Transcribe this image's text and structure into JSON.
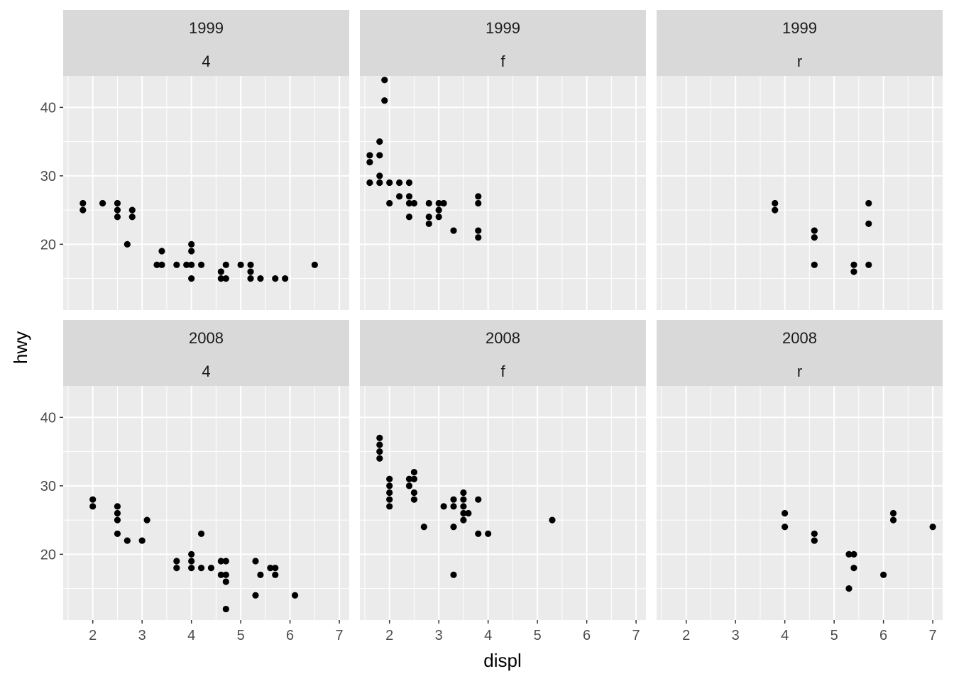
{
  "chart_data": {
    "type": "scatter",
    "facet_rows": [
      "1999",
      "2008"
    ],
    "facet_cols": [
      "4",
      "f",
      "r"
    ],
    "xlabel": "displ",
    "ylabel": "hwy",
    "xlim": [
      1.4,
      7.2
    ],
    "ylim": [
      10.4,
      44.6
    ],
    "x_ticks": [
      2,
      3,
      4,
      5,
      6,
      7
    ],
    "y_ticks": [
      20,
      30,
      40
    ],
    "grid": true,
    "point_color": "#000000",
    "panel_bg": "#EBEBEB",
    "strip_bg": "#D9D9D9",
    "panels": [
      {
        "row": "1999",
        "col": "4",
        "points": [
          [
            1.8,
            26
          ],
          [
            1.8,
            25
          ],
          [
            2.2,
            26
          ],
          [
            2.5,
            26
          ],
          [
            2.5,
            25
          ],
          [
            2.5,
            24
          ],
          [
            2.7,
            20
          ],
          [
            2.8,
            25
          ],
          [
            2.8,
            24
          ],
          [
            3.3,
            17
          ],
          [
            3.4,
            17
          ],
          [
            3.4,
            19
          ],
          [
            3.7,
            17
          ],
          [
            3.9,
            17
          ],
          [
            4.0,
            20
          ],
          [
            4.0,
            19
          ],
          [
            4.0,
            17
          ],
          [
            4.0,
            15
          ],
          [
            4.2,
            17
          ],
          [
            4.6,
            16
          ],
          [
            4.6,
            15
          ],
          [
            4.7,
            17
          ],
          [
            4.7,
            15
          ],
          [
            5.0,
            17
          ],
          [
            5.2,
            17
          ],
          [
            5.2,
            16
          ],
          [
            5.2,
            15
          ],
          [
            5.4,
            15
          ],
          [
            5.7,
            15
          ],
          [
            5.9,
            15
          ],
          [
            6.5,
            17
          ]
        ]
      },
      {
        "row": "1999",
        "col": "f",
        "points": [
          [
            1.6,
            33
          ],
          [
            1.6,
            32
          ],
          [
            1.6,
            29
          ],
          [
            1.8,
            35
          ],
          [
            1.8,
            33
          ],
          [
            1.8,
            30
          ],
          [
            1.8,
            29
          ],
          [
            1.9,
            44
          ],
          [
            1.9,
            41
          ],
          [
            2.0,
            29
          ],
          [
            2.0,
            26
          ],
          [
            2.2,
            29
          ],
          [
            2.2,
            27
          ],
          [
            2.4,
            29
          ],
          [
            2.4,
            27
          ],
          [
            2.4,
            26
          ],
          [
            2.4,
            24
          ],
          [
            2.5,
            26
          ],
          [
            2.8,
            26
          ],
          [
            2.8,
            24
          ],
          [
            2.8,
            23
          ],
          [
            3.0,
            26
          ],
          [
            3.0,
            25
          ],
          [
            3.0,
            24
          ],
          [
            3.1,
            26
          ],
          [
            3.3,
            22
          ],
          [
            3.8,
            27
          ],
          [
            3.8,
            26
          ],
          [
            3.8,
            22
          ],
          [
            3.8,
            21
          ]
        ]
      },
      {
        "row": "1999",
        "col": "r",
        "points": [
          [
            3.8,
            26
          ],
          [
            3.8,
            25
          ],
          [
            4.6,
            22
          ],
          [
            4.6,
            21
          ],
          [
            4.6,
            17
          ],
          [
            5.4,
            17
          ],
          [
            5.4,
            16
          ],
          [
            5.7,
            26
          ],
          [
            5.7,
            23
          ],
          [
            5.7,
            17
          ]
        ]
      },
      {
        "row": "2008",
        "col": "4",
        "points": [
          [
            2.0,
            28
          ],
          [
            2.0,
            27
          ],
          [
            2.5,
            27
          ],
          [
            2.5,
            26
          ],
          [
            2.5,
            25
          ],
          [
            2.5,
            23
          ],
          [
            2.7,
            22
          ],
          [
            3.0,
            22
          ],
          [
            3.1,
            25
          ],
          [
            3.7,
            19
          ],
          [
            3.7,
            18
          ],
          [
            4.0,
            20
          ],
          [
            4.0,
            19
          ],
          [
            4.0,
            18
          ],
          [
            4.2,
            23
          ],
          [
            4.2,
            18
          ],
          [
            4.4,
            18
          ],
          [
            4.6,
            19
          ],
          [
            4.6,
            17
          ],
          [
            4.7,
            19
          ],
          [
            4.7,
            17
          ],
          [
            4.7,
            16
          ],
          [
            4.7,
            12
          ],
          [
            5.3,
            19
          ],
          [
            5.3,
            14
          ],
          [
            5.4,
            17
          ],
          [
            5.6,
            18
          ],
          [
            5.7,
            18
          ],
          [
            5.7,
            17
          ],
          [
            6.1,
            14
          ]
        ]
      },
      {
        "row": "2008",
        "col": "f",
        "points": [
          [
            1.8,
            37
          ],
          [
            1.8,
            36
          ],
          [
            1.8,
            35
          ],
          [
            1.8,
            34
          ],
          [
            2.0,
            31
          ],
          [
            2.0,
            30
          ],
          [
            2.0,
            29
          ],
          [
            2.0,
            28
          ],
          [
            2.0,
            27
          ],
          [
            2.4,
            31
          ],
          [
            2.4,
            30
          ],
          [
            2.5,
            32
          ],
          [
            2.5,
            31
          ],
          [
            2.5,
            29
          ],
          [
            2.5,
            28
          ],
          [
            2.7,
            24
          ],
          [
            3.1,
            27
          ],
          [
            3.3,
            28
          ],
          [
            3.3,
            27
          ],
          [
            3.3,
            24
          ],
          [
            3.3,
            17
          ],
          [
            3.5,
            29
          ],
          [
            3.5,
            28
          ],
          [
            3.5,
            27
          ],
          [
            3.5,
            26
          ],
          [
            3.5,
            25
          ],
          [
            3.6,
            26
          ],
          [
            3.8,
            28
          ],
          [
            3.8,
            23
          ],
          [
            4.0,
            23
          ],
          [
            5.3,
            25
          ]
        ]
      },
      {
        "row": "2008",
        "col": "r",
        "points": [
          [
            4.0,
            26
          ],
          [
            4.0,
            24
          ],
          [
            4.6,
            23
          ],
          [
            4.6,
            22
          ],
          [
            5.3,
            20
          ],
          [
            5.3,
            15
          ],
          [
            5.4,
            20
          ],
          [
            5.4,
            18
          ],
          [
            6.0,
            17
          ],
          [
            6.2,
            26
          ],
          [
            6.2,
            25
          ],
          [
            7.0,
            24
          ]
        ]
      }
    ]
  }
}
